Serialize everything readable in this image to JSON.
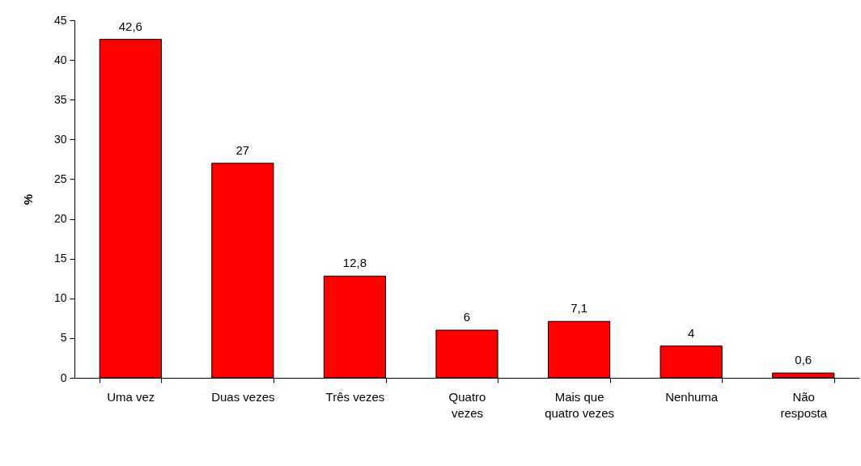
{
  "chart_data": {
    "type": "bar",
    "ylabel": "%",
    "categories": [
      "Uma vez",
      "Duas vezes",
      "Três vezes",
      "Quatro vezes",
      "Mais que quatro vezes",
      "Nenhuma",
      "Não resposta"
    ],
    "values": [
      42.6,
      27,
      12.8,
      6,
      7.1,
      4,
      0.6
    ],
    "value_labels": [
      "42,6",
      "27",
      "12,8",
      "6",
      "7,1",
      "4",
      "0,6"
    ],
    "color": "#ff0000",
    "ylim": [
      0,
      45
    ],
    "yticks": [
      0,
      5,
      10,
      15,
      20,
      25,
      30,
      35,
      40,
      45
    ],
    "grid": false
  }
}
